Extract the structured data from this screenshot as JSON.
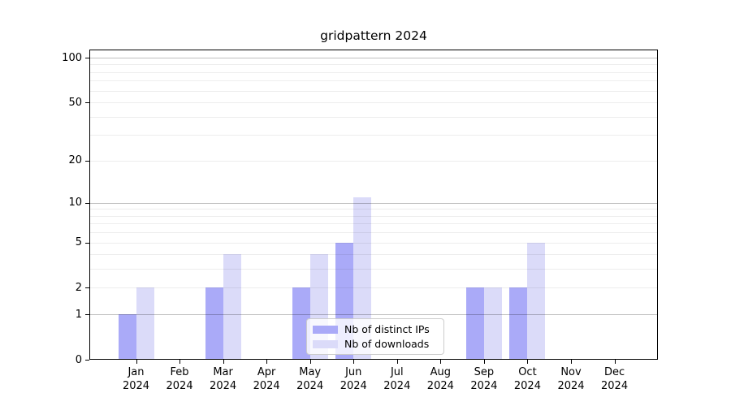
{
  "title": "gridpattern 2024",
  "chart_data": {
    "type": "bar",
    "title": "gridpattern 2024",
    "x_categories": [
      {
        "month": "Jan",
        "year": "2024"
      },
      {
        "month": "Feb",
        "year": "2024"
      },
      {
        "month": "Mar",
        "year": "2024"
      },
      {
        "month": "Apr",
        "year": "2024"
      },
      {
        "month": "May",
        "year": "2024"
      },
      {
        "month": "Jun",
        "year": "2024"
      },
      {
        "month": "Jul",
        "year": "2024"
      },
      {
        "month": "Aug",
        "year": "2024"
      },
      {
        "month": "Sep",
        "year": "2024"
      },
      {
        "month": "Oct",
        "year": "2024"
      },
      {
        "month": "Nov",
        "year": "2024"
      },
      {
        "month": "Dec",
        "year": "2024"
      }
    ],
    "series": [
      {
        "key": "ips",
        "name": "Nb of distinct IPs",
        "color": "#aaaaf8",
        "values": [
          1,
          0,
          2,
          0,
          2,
          5,
          0,
          0,
          2,
          2,
          0,
          0
        ]
      },
      {
        "key": "downloads",
        "name": "Nb of downloads",
        "color": "#dbdbf9",
        "values": [
          2,
          0,
          4,
          0,
          4,
          11,
          0,
          0,
          2,
          5,
          0,
          0
        ]
      }
    ],
    "y_scale": "log1p",
    "y_ticks": [
      0,
      1,
      2,
      5,
      10,
      20,
      50,
      100
    ],
    "ylim": [
      0,
      113
    ],
    "major_grid_values": [
      1,
      10,
      100
    ],
    "minor_grid_values": [
      2,
      3,
      4,
      5,
      6,
      7,
      8,
      9,
      20,
      30,
      40,
      50,
      60,
      70,
      80,
      90
    ],
    "grid": true,
    "legend_position": "lower center"
  }
}
